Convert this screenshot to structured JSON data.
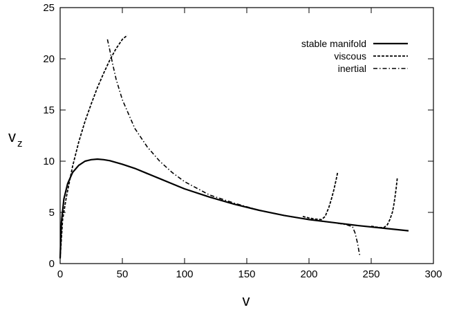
{
  "chart_data": {
    "type": "line",
    "title": "",
    "xlabel": "v",
    "ylabel": "v_z",
    "ylabel_main": "v",
    "ylabel_sub": "z",
    "xlim": [
      0,
      300
    ],
    "ylim": [
      0,
      25
    ],
    "x_ticks": [
      0,
      50,
      100,
      150,
      200,
      250,
      300
    ],
    "y_ticks": [
      0,
      5,
      10,
      15,
      20,
      25
    ],
    "grid": false,
    "legend_position": "top-right",
    "series": [
      {
        "name": "stable manifold",
        "style": "solid",
        "color": "#000000",
        "x": [
          0,
          1,
          3,
          6,
          10,
          15,
          20,
          25,
          30,
          35,
          40,
          50,
          60,
          70,
          80,
          90,
          100,
          120,
          140,
          160,
          180,
          200,
          220,
          240,
          260,
          280
        ],
        "y": [
          0.5,
          4.0,
          6.3,
          7.8,
          8.9,
          9.6,
          10.0,
          10.15,
          10.2,
          10.15,
          10.05,
          9.7,
          9.3,
          8.8,
          8.3,
          7.8,
          7.3,
          6.5,
          5.8,
          5.2,
          4.7,
          4.3,
          4.0,
          3.7,
          3.45,
          3.2
        ]
      },
      {
        "name": "viscous",
        "style": "dashed",
        "color": "#000000",
        "x": [
          0,
          2,
          5,
          10,
          15,
          20,
          25,
          30,
          35,
          40,
          45,
          50,
          54
        ],
        "y": [
          0.5,
          4.3,
          6.5,
          9.5,
          11.9,
          13.9,
          15.6,
          17.2,
          18.6,
          19.9,
          21.0,
          21.9,
          22.3
        ],
        "branches": [
          {
            "x": [
              195,
              200,
              205,
              210,
              213,
              216,
              218,
              220,
              222,
              223
            ],
            "y": [
              4.6,
              4.45,
              4.35,
              4.3,
              4.6,
              5.5,
              6.3,
              7.2,
              8.3,
              8.9
            ]
          },
          {
            "x": [
              250,
              255,
              260,
              263,
              265,
              267,
              268,
              269,
              270,
              271
            ],
            "y": [
              3.65,
              3.55,
              3.5,
              3.8,
              4.3,
              5.0,
              5.6,
              6.4,
              7.3,
              8.4
            ]
          }
        ]
      },
      {
        "name": "inertial",
        "style": "dash-dot",
        "color": "#000000",
        "x": [
          38,
          40,
          42,
          45,
          50,
          60,
          70,
          80,
          90,
          100,
          120,
          140,
          160,
          180,
          200,
          220,
          230,
          235,
          237,
          239,
          240,
          241
        ],
        "y": [
          21.9,
          20.8,
          19.6,
          18.0,
          16.0,
          13.2,
          11.4,
          10.0,
          8.9,
          8.0,
          6.7,
          5.9,
          5.2,
          4.7,
          4.3,
          4.0,
          3.8,
          3.6,
          3.0,
          2.0,
          1.3,
          0.7
        ]
      }
    ]
  }
}
